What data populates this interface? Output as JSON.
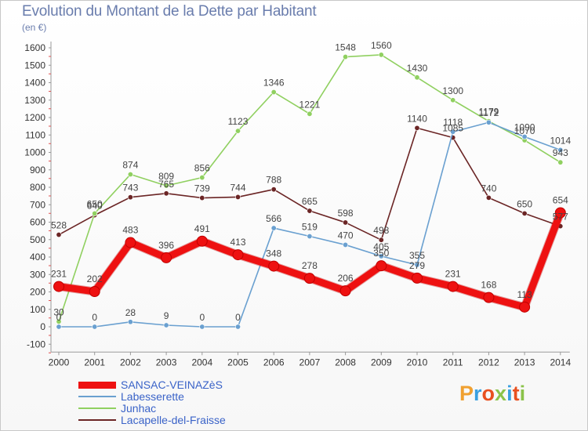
{
  "title": "Evolution du Montant de la Dette par Habitant",
  "unit": "(en €)",
  "logo": {
    "text": "Proxiti",
    "colors": [
      "#f0a030",
      "#3aa0e0",
      "#e85020",
      "#8bc34a",
      "#3aa0e0",
      "#e85020",
      "#8bc34a"
    ]
  },
  "chart_data": {
    "type": "line",
    "title": "Evolution du Montant de la Dette par Habitant",
    "ylabel": "(en €)",
    "xlabel": "",
    "x": [
      "2000",
      "2001",
      "2002",
      "2003",
      "2004",
      "2005",
      "2006",
      "2007",
      "2008",
      "2009",
      "2010",
      "2011",
      "2012",
      "2013",
      "2014"
    ],
    "ylim": [
      -100,
      1600
    ],
    "yticks": [
      -100,
      0,
      100,
      200,
      300,
      400,
      500,
      600,
      700,
      800,
      900,
      1000,
      1100,
      1200,
      1300,
      1400,
      1500,
      1600
    ],
    "grid": false,
    "legend_position": "bottom",
    "series": [
      {
        "name": "SANSAC-VEINAZèS",
        "color": "#ee1111",
        "values": [
          231,
          202,
          483,
          396,
          491,
          413,
          348,
          278,
          206,
          350,
          279,
          231,
          168,
          113,
          654
        ]
      },
      {
        "name": "Labesserette",
        "color": "#6aa0d0",
        "values": [
          0,
          0,
          28,
          9,
          0,
          0,
          566,
          519,
          470,
          405,
          355,
          1118,
          1172,
          1090,
          1014
        ]
      },
      {
        "name": "Junhac",
        "color": "#90d060",
        "values": [
          30,
          650,
          874,
          809,
          856,
          1123,
          1346,
          1221,
          1548,
          1560,
          1430,
          1300,
          1179,
          1070,
          943
        ]
      },
      {
        "name": "Lacapelle-del-Fraisse",
        "color": "#6b2525",
        "values": [
          528,
          640,
          743,
          765,
          739,
          744,
          788,
          665,
          598,
          498,
          1140,
          1085,
          740,
          650,
          577
        ]
      }
    ]
  }
}
